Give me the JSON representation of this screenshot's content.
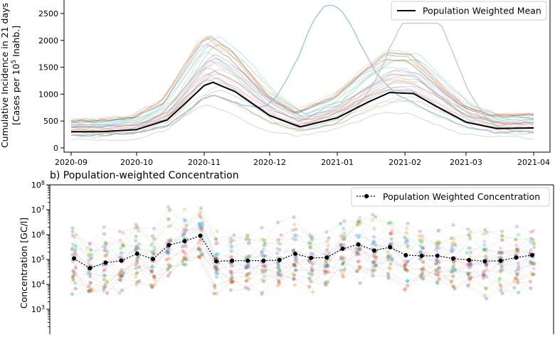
{
  "chart_data": [
    {
      "type": "line",
      "ylabel_line1": "Cumulative Incidence in 21 days",
      "ylabel_line2_prefix": "[Cases per 10",
      "ylabel_line2_sup": "5",
      "ylabel_line2_suffix": " Inahb.]",
      "x_ticks": [
        "2020-09",
        "2020-10",
        "2020-11",
        "2020-12",
        "2021-01",
        "2021-02",
        "2021-03",
        "2021-04"
      ],
      "y_ticks": [
        0,
        500,
        1000,
        1500,
        2000,
        2500
      ],
      "ylim": [
        -100,
        2700
      ],
      "grid": false,
      "legend": "top-right",
      "series": [
        {
          "name": "Population Weighted Mean",
          "color": "#000000",
          "x": [
            "2020-09-01",
            "2020-09-15",
            "2020-10-01",
            "2020-10-15",
            "2020-10-22",
            "2020-11-01",
            "2020-11-05",
            "2020-11-15",
            "2020-12-01",
            "2020-12-15",
            "2021-01-01",
            "2021-01-15",
            "2021-01-25",
            "2021-02-05",
            "2021-02-15",
            "2021-03-01",
            "2021-03-15",
            "2021-04-01"
          ],
          "y": [
            300,
            300,
            340,
            520,
            780,
            1160,
            1220,
            1050,
            600,
            390,
            560,
            850,
            1030,
            1010,
            780,
            480,
            360,
            370
          ]
        }
      ],
      "background_series_count": 30,
      "background_peaks": [
        {
          "x": "2020-12-28",
          "y": 2650,
          "color": "#8ab6d6"
        },
        {
          "x": "2021-02-10",
          "y": 2320,
          "color": "#bbbbbb"
        }
      ]
    },
    {
      "type": "scatter",
      "title": "b) Population-weighted Concentration",
      "ylabel": "Concentration [GC/l]",
      "yscale": "log",
      "y_ticks_exp": [
        3,
        4,
        5,
        6,
        7,
        8
      ],
      "ylim": [
        "1e2",
        "1e8"
      ],
      "grid": false,
      "legend": "top-right",
      "series": [
        {
          "name": "Population Weighted Concentration",
          "color": "#000000",
          "y": [
            110000,
            45000,
            75000,
            90000,
            170000,
            105000,
            380000,
            550000,
            900000,
            85000,
            90000,
            90000,
            90000,
            95000,
            170000,
            115000,
            120000,
            270000,
            400000,
            230000,
            310000,
            150000,
            140000,
            140000,
            110000,
            95000,
            85000,
            90000,
            120000,
            150000
          ]
        }
      ],
      "background_series_count": 30
    }
  ]
}
